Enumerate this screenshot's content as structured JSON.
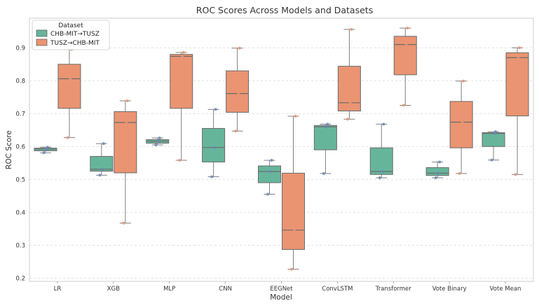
{
  "chart_data": {
    "type": "box",
    "title": "ROC Scores Across Models and Datasets",
    "xlabel": "Model",
    "ylabel": "ROC Score",
    "ylim": [
      0.19,
      0.99
    ],
    "yticks": [
      0.2,
      0.3,
      0.4,
      0.5,
      0.6,
      0.7,
      0.8,
      0.9
    ],
    "grid": "horizontal-dashed",
    "legend": {
      "title": "Dataset",
      "placement": "top-left"
    },
    "categories": [
      "LR",
      "XGB",
      "MLP",
      "CNN",
      "EEGNet",
      "ConvLSTM",
      "Transformer",
      "Vote Binary",
      "Vote Mean"
    ],
    "series": [
      {
        "name": "CHB-MIT→TUSZ",
        "color": "#66b59a",
        "point_color": "#6a86b8",
        "boxes": [
          {
            "whislo": 0.581,
            "q1": 0.587,
            "med": 0.592,
            "q3": 0.595,
            "whishi": 0.598,
            "points": [
              0.581,
              0.592,
              0.598
            ]
          },
          {
            "whislo": 0.513,
            "q1": 0.525,
            "med": 0.531,
            "q3": 0.57,
            "whishi": 0.609,
            "points": [
              0.513,
              0.531,
              0.609
            ]
          },
          {
            "whislo": 0.605,
            "q1": 0.61,
            "med": 0.616,
            "q3": 0.621,
            "whishi": 0.626,
            "points": [
              0.605,
              0.616,
              0.626
            ]
          },
          {
            "whislo": 0.508,
            "q1": 0.553,
            "med": 0.597,
            "q3": 0.655,
            "whishi": 0.713,
            "points": [
              0.508,
              0.597,
              0.713
            ]
          },
          {
            "whislo": 0.455,
            "q1": 0.49,
            "med": 0.524,
            "q3": 0.541,
            "whishi": 0.558,
            "points": [
              0.455,
              0.524,
              0.558
            ]
          },
          {
            "whislo": 0.518,
            "q1": 0.59,
            "med": 0.66,
            "q3": 0.664,
            "whishi": 0.668,
            "points": [
              0.518,
              0.66,
              0.668
            ]
          },
          {
            "whislo": 0.505,
            "q1": 0.515,
            "med": 0.524,
            "q3": 0.596,
            "whishi": 0.668,
            "points": [
              0.505,
              0.524,
              0.668
            ]
          },
          {
            "whislo": 0.505,
            "q1": 0.512,
            "med": 0.519,
            "q3": 0.536,
            "whishi": 0.553,
            "points": [
              0.505,
              0.519,
              0.553
            ]
          },
          {
            "whislo": 0.559,
            "q1": 0.6,
            "med": 0.64,
            "q3": 0.642,
            "whishi": 0.645,
            "points": [
              0.559,
              0.64,
              0.645
            ]
          }
        ]
      },
      {
        "name": "TUSZ→CHB-MIT",
        "color": "#ea9472",
        "point_color": "#ea9472",
        "boxes": [
          {
            "whislo": 0.627,
            "q1": 0.716,
            "med": 0.806,
            "q3": 0.85,
            "whishi": 0.895,
            "points": [
              0.627,
              0.806,
              0.895
            ]
          },
          {
            "whislo": 0.367,
            "q1": 0.52,
            "med": 0.673,
            "q3": 0.706,
            "whishi": 0.739,
            "points": [
              0.367,
              0.673,
              0.739
            ]
          },
          {
            "whislo": 0.558,
            "q1": 0.716,
            "med": 0.874,
            "q3": 0.88,
            "whishi": 0.886,
            "points": [
              0.558,
              0.874,
              0.886
            ]
          },
          {
            "whislo": 0.647,
            "q1": 0.704,
            "med": 0.761,
            "q3": 0.83,
            "whishi": 0.899,
            "points": [
              0.647,
              0.761,
              0.899
            ]
          },
          {
            "whislo": 0.227,
            "q1": 0.287,
            "med": 0.346,
            "q3": 0.519,
            "whishi": 0.692,
            "points": [
              0.227,
              0.346,
              0.692
            ]
          },
          {
            "whislo": 0.683,
            "q1": 0.708,
            "med": 0.733,
            "q3": 0.844,
            "whishi": 0.956,
            "points": [
              0.683,
              0.733,
              0.956
            ]
          },
          {
            "whislo": 0.725,
            "q1": 0.818,
            "med": 0.91,
            "q3": 0.935,
            "whishi": 0.96,
            "points": [
              0.725,
              0.91,
              0.96
            ]
          },
          {
            "whislo": 0.518,
            "q1": 0.596,
            "med": 0.674,
            "q3": 0.737,
            "whishi": 0.799,
            "points": [
              0.518,
              0.674,
              0.799
            ]
          },
          {
            "whislo": 0.515,
            "q1": 0.693,
            "med": 0.87,
            "q3": 0.885,
            "whishi": 0.9,
            "points": [
              0.515,
              0.87,
              0.9
            ]
          }
        ]
      }
    ]
  }
}
